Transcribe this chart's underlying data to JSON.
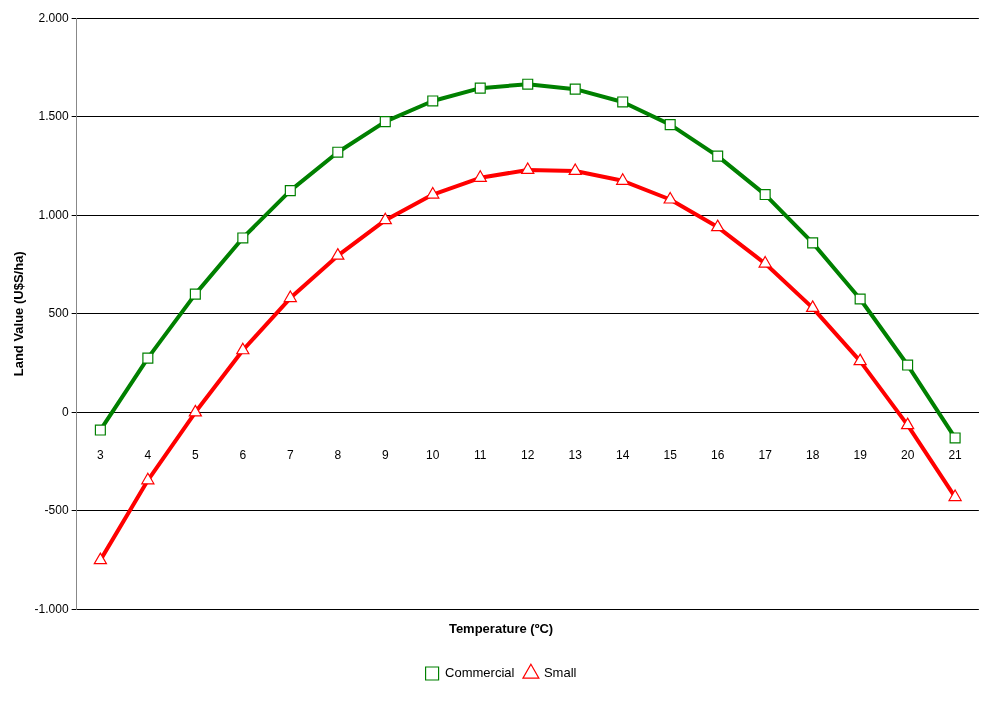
{
  "chart_data": {
    "type": "line",
    "xlabel": "Temperature (ºC)",
    "ylabel": "Land Value (U$S/ha)",
    "categories": [
      "3",
      "4",
      "5",
      "6",
      "7",
      "8",
      "9",
      "10",
      "11",
      "12",
      "13",
      "14",
      "15",
      "16",
      "17",
      "18",
      "19",
      "20",
      "21"
    ],
    "series": [
      {
        "name": "Commercial",
        "color": "#008000",
        "marker": "square",
        "values": [
          -90,
          275,
          600,
          885,
          1125,
          1320,
          1475,
          1580,
          1645,
          1665,
          1640,
          1575,
          1460,
          1300,
          1105,
          860,
          575,
          240,
          -130
        ]
      },
      {
        "name": "Small",
        "color": "#ff0000",
        "marker": "triangle",
        "values": [
          -750,
          -345,
          0,
          315,
          580,
          795,
          975,
          1105,
          1190,
          1230,
          1225,
          1175,
          1080,
          940,
          755,
          530,
          260,
          -65,
          -430
        ]
      }
    ],
    "ylim": [
      -1000,
      2000
    ],
    "yticks": [
      {
        "value": -1000,
        "label": "-1.000"
      },
      {
        "value": -500,
        "label": "-500"
      },
      {
        "value": 0,
        "label": "0"
      },
      {
        "value": 500,
        "label": "500"
      },
      {
        "value": 1000,
        "label": "1.000"
      },
      {
        "value": 1500,
        "label": "1.500"
      },
      {
        "value": 2000,
        "label": "2.000"
      }
    ],
    "grid": "y",
    "legend": "bottom",
    "line_style": "solid"
  }
}
